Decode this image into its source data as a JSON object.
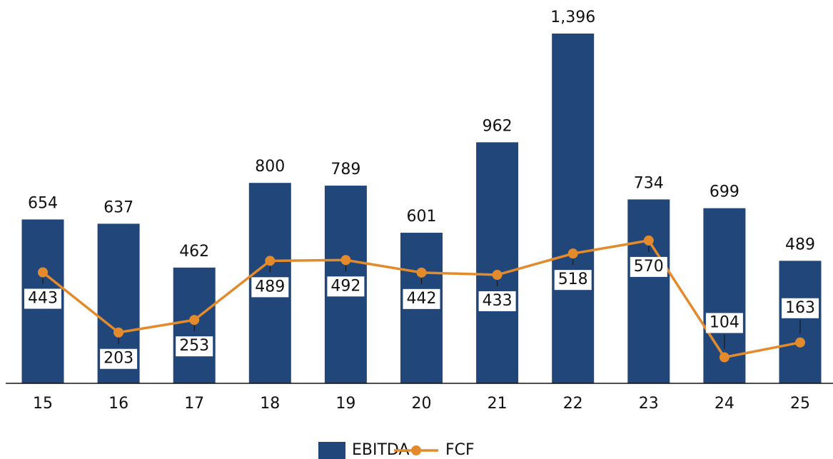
{
  "chart_data": {
    "type": "bar_line",
    "categories": [
      "15",
      "16",
      "17",
      "18",
      "19",
      "20",
      "21",
      "22",
      "23",
      "24",
      "25"
    ],
    "series": [
      {
        "name": "EBITDA",
        "type": "bar",
        "color": "#21467a",
        "values": [
          654,
          637,
          462,
          800,
          789,
          601,
          962,
          1396,
          734,
          699,
          489
        ],
        "value_labels": [
          "654",
          "637",
          "462",
          "800",
          "789",
          "601",
          "962",
          "1,396",
          "734",
          "699",
          "489"
        ]
      },
      {
        "name": "FCF",
        "type": "line",
        "color": "#e38b2c",
        "values": [
          443,
          203,
          253,
          489,
          492,
          442,
          433,
          518,
          570,
          104,
          163
        ]
      }
    ],
    "legend": "bottom"
  }
}
